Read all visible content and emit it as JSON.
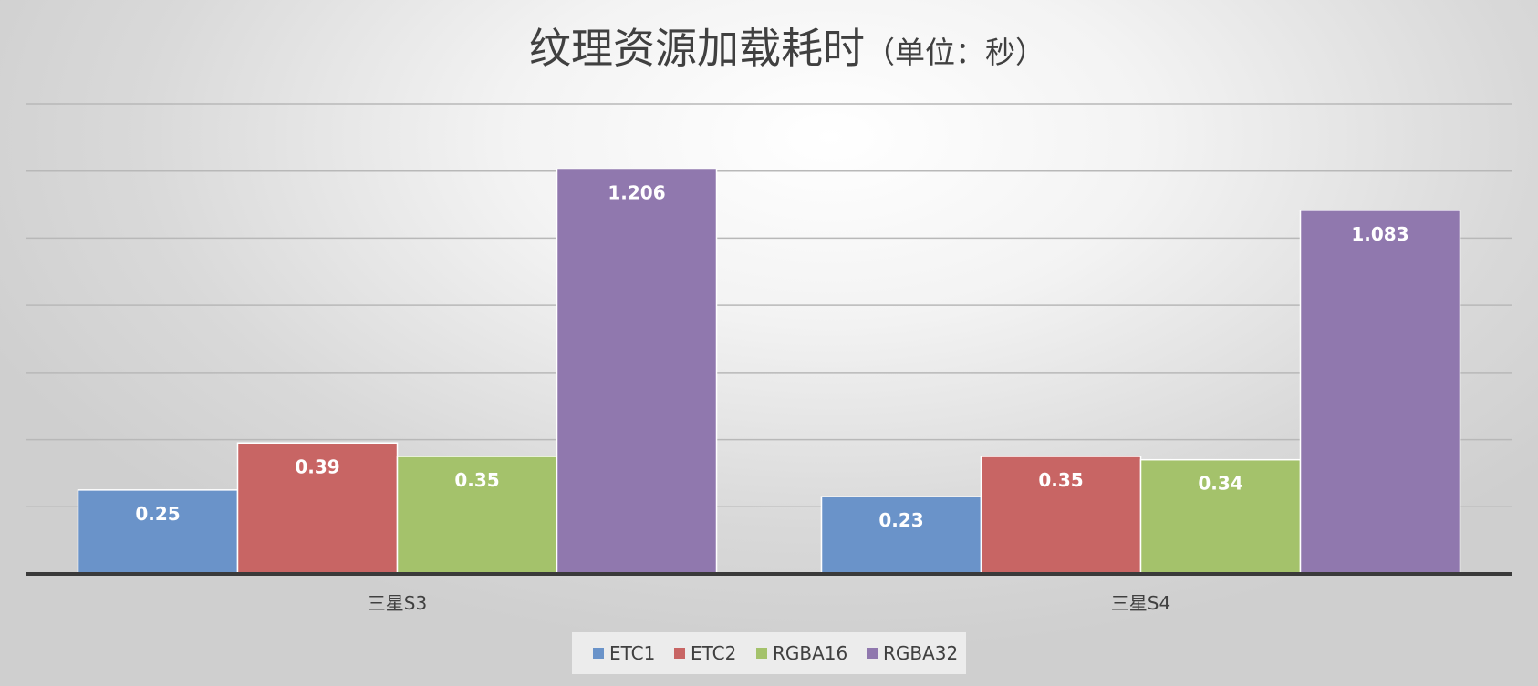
{
  "chart_data": {
    "type": "bar",
    "title": "纹理资源加载耗时",
    "title_suffix": "（单位：秒）",
    "categories": [
      "三星S3",
      "三星S4"
    ],
    "series": [
      {
        "name": "ETC1",
        "values": [
          0.25,
          0.23
        ],
        "labels": [
          "0.25",
          "0.23"
        ],
        "color": "#6a93c9"
      },
      {
        "name": "ETC2",
        "values": [
          0.39,
          0.35
        ],
        "labels": [
          "0.39",
          "0.35"
        ],
        "color": "#c86564"
      },
      {
        "name": "RGBA16",
        "values": [
          0.35,
          0.34
        ],
        "labels": [
          "0.35",
          "0.34"
        ],
        "color": "#a4c26b"
      },
      {
        "name": "RGBA32",
        "values": [
          1.206,
          1.083
        ],
        "labels": [
          "1.206",
          "1.083"
        ],
        "color": "#9078ae"
      }
    ],
    "ylim": [
      0,
      1.4
    ],
    "gridlines": true,
    "y_axis_labels_visible": false,
    "legend_position": "bottom-center",
    "data_labels": "inside-top"
  }
}
